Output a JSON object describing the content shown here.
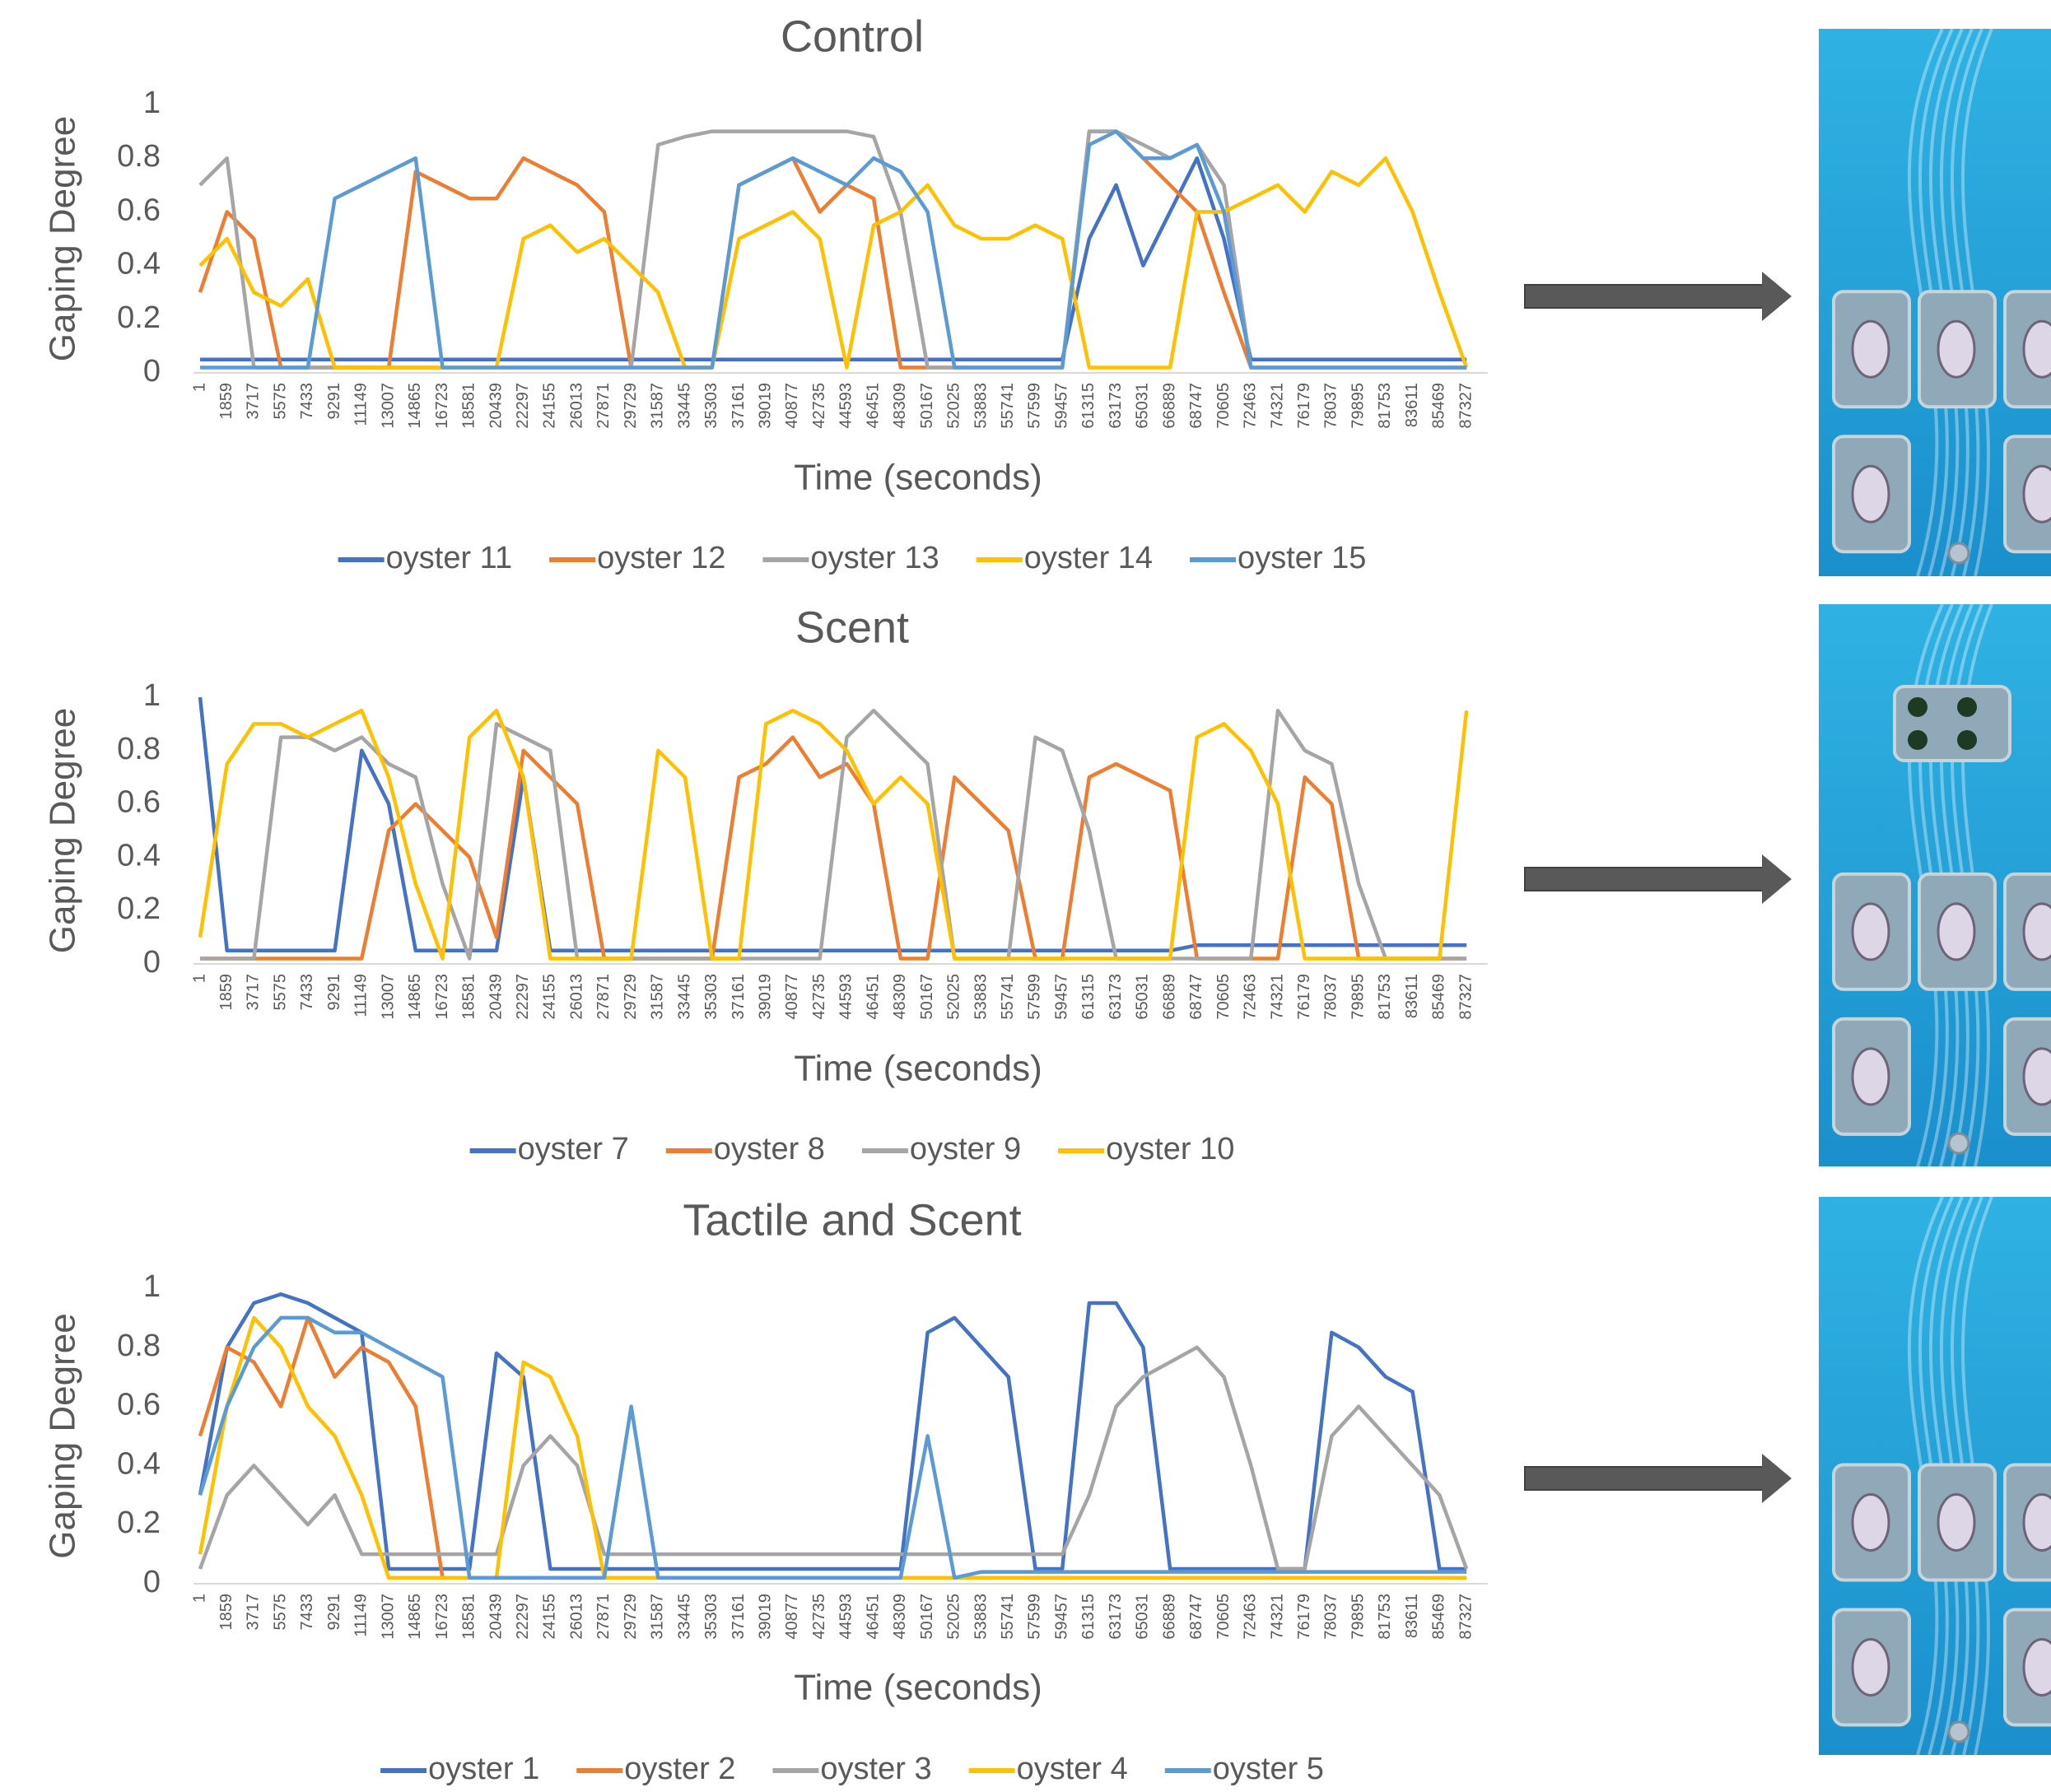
{
  "chart_data": [
    {
      "type": "line",
      "title": "Control",
      "x_label": "Time (seconds)",
      "y_label": "Gaping Degree",
      "x": [
        1,
        1859,
        3717,
        5575,
        7433,
        9291,
        11149,
        13007,
        14865,
        16723,
        18581,
        20439,
        22297,
        24155,
        26013,
        27871,
        29729,
        31587,
        33445,
        35303,
        37161,
        39019,
        40877,
        42735,
        44593,
        46451,
        48309,
        50167,
        52025,
        53883,
        55741,
        57599,
        59457,
        61315,
        63173,
        65031,
        66889,
        68747,
        70605,
        72463,
        74321,
        76179,
        78037,
        79895,
        81753,
        83611,
        85469,
        87327
      ],
      "xticks": [
        1,
        1859,
        3717,
        5575,
        7433,
        9291,
        11149,
        13007,
        14865,
        16723,
        18581,
        20439,
        22297,
        24155,
        26013,
        27871,
        29729,
        31587,
        33445,
        35303,
        37161,
        39019,
        40877,
        42735,
        44593,
        46451,
        48309,
        50167,
        52025,
        53883,
        55741,
        57599,
        59457,
        61315,
        63173,
        65031,
        66889,
        68747,
        70605,
        72463,
        74321,
        76179,
        78037,
        79895,
        81753,
        83611,
        85469,
        87327
      ],
      "xlim": [
        1,
        88800
      ],
      "ylim": [
        0,
        1
      ],
      "yticks": [
        0,
        0.2,
        0.4,
        0.6,
        0.8,
        1
      ],
      "series": [
        {
          "name": "oyster 11",
          "color": "#4472c4",
          "values": [
            0.05,
            0.05,
            0.05,
            0.05,
            0.05,
            0.05,
            0.05,
            0.05,
            0.05,
            0.05,
            0.05,
            0.05,
            0.05,
            0.05,
            0.05,
            0.05,
            0.05,
            0.05,
            0.05,
            0.05,
            0.05,
            0.05,
            0.05,
            0.05,
            0.05,
            0.05,
            0.05,
            0.05,
            0.05,
            0.05,
            0.05,
            0.05,
            0.05,
            0.5,
            0.7,
            0.4,
            0.6,
            0.8,
            0.5,
            0.05,
            0.05,
            0.05,
            0.05,
            0.05,
            0.05,
            0.05,
            0.05,
            0.05
          ]
        },
        {
          "name": "oyster 12",
          "color": "#ed7d31",
          "values": [
            0.3,
            0.6,
            0.5,
            0.02,
            0.02,
            0.02,
            0.02,
            0.02,
            0.75,
            0.7,
            0.65,
            0.65,
            0.8,
            0.75,
            0.7,
            0.6,
            0.02,
            0.02,
            0.02,
            0.02,
            0.7,
            0.75,
            0.8,
            0.6,
            0.7,
            0.65,
            0.02,
            0.02,
            0.02,
            0.02,
            0.02,
            0.02,
            0.02,
            0.9,
            0.9,
            0.8,
            0.7,
            0.6,
            0.3,
            0.02,
            0.02,
            0.02,
            0.02,
            0.02,
            0.02,
            0.02,
            0.02,
            0.02
          ]
        },
        {
          "name": "oyster 13",
          "color": "#a5a5a5",
          "values": [
            0.7,
            0.8,
            0.02,
            0.02,
            0.02,
            0.02,
            0.02,
            0.02,
            0.02,
            0.02,
            0.02,
            0.02,
            0.02,
            0.02,
            0.02,
            0.02,
            0.02,
            0.85,
            0.88,
            0.9,
            0.9,
            0.9,
            0.9,
            0.9,
            0.9,
            0.88,
            0.6,
            0.02,
            0.02,
            0.02,
            0.02,
            0.02,
            0.02,
            0.9,
            0.9,
            0.85,
            0.8,
            0.85,
            0.7,
            0.02,
            0.02,
            0.02,
            0.02,
            0.02,
            0.02,
            0.02,
            0.02,
            0.02
          ]
        },
        {
          "name": "oyster 14",
          "color": "#ffc000",
          "values": [
            0.4,
            0.5,
            0.3,
            0.25,
            0.35,
            0.02,
            0.02,
            0.02,
            0.02,
            0.02,
            0.02,
            0.02,
            0.5,
            0.55,
            0.45,
            0.5,
            0.4,
            0.3,
            0.02,
            0.02,
            0.5,
            0.55,
            0.6,
            0.5,
            0.02,
            0.55,
            0.6,
            0.7,
            0.55,
            0.5,
            0.5,
            0.55,
            0.5,
            0.02,
            0.02,
            0.02,
            0.02,
            0.6,
            0.6,
            0.65,
            0.7,
            0.6,
            0.75,
            0.7,
            0.8,
            0.6,
            0.3,
            0.02
          ]
        },
        {
          "name": "oyster 15",
          "color": "#5b9bd5",
          "values": [
            0.02,
            0.02,
            0.02,
            0.02,
            0.02,
            0.65,
            0.7,
            0.75,
            0.8,
            0.02,
            0.02,
            0.02,
            0.02,
            0.02,
            0.02,
            0.02,
            0.02,
            0.02,
            0.02,
            0.02,
            0.7,
            0.75,
            0.8,
            0.75,
            0.7,
            0.8,
            0.75,
            0.6,
            0.02,
            0.02,
            0.02,
            0.02,
            0.02,
            0.85,
            0.9,
            0.8,
            0.8,
            0.85,
            0.6,
            0.02,
            0.02,
            0.02,
            0.02,
            0.02,
            0.02,
            0.02,
            0.02,
            0.02
          ]
        }
      ]
    },
    {
      "type": "line",
      "title": "Scent",
      "x_label": "Time (seconds)",
      "y_label": "Gaping Degree",
      "x": [
        1,
        1859,
        3717,
        5575,
        7433,
        9291,
        11149,
        13007,
        14865,
        16723,
        18581,
        20439,
        22297,
        24155,
        26013,
        27871,
        29729,
        31587,
        33445,
        35303,
        37161,
        39019,
        40877,
        42735,
        44593,
        46451,
        48309,
        50167,
        52025,
        53883,
        55741,
        57599,
        59457,
        61315,
        63173,
        65031,
        66889,
        68747,
        70605,
        72463,
        74321,
        76179,
        78037,
        79895,
        81753,
        83611,
        85469,
        87327
      ],
      "xticks": [
        1,
        1859,
        3717,
        5575,
        7433,
        9291,
        11149,
        13007,
        14865,
        16723,
        18581,
        20439,
        22297,
        24155,
        26013,
        27871,
        29729,
        31587,
        33445,
        35303,
        37161,
        39019,
        40877,
        42735,
        44593,
        46451,
        48309,
        50167,
        52025,
        53883,
        55741,
        57599,
        59457,
        61315,
        63173,
        65031,
        66889,
        68747,
        70605,
        72463,
        74321,
        76179,
        78037,
        79895,
        81753,
        83611,
        85469,
        87327
      ],
      "xlim": [
        1,
        88800
      ],
      "ylim": [
        0,
        1
      ],
      "yticks": [
        0,
        0.2,
        0.4,
        0.6,
        0.8,
        1
      ],
      "series": [
        {
          "name": "oyster 7",
          "color": "#4472c4",
          "values": [
            1,
            0.05,
            0.05,
            0.05,
            0.05,
            0.05,
            0.8,
            0.6,
            0.05,
            0.05,
            0.05,
            0.05,
            0.7,
            0.05,
            0.05,
            0.05,
            0.05,
            0.05,
            0.05,
            0.05,
            0.05,
            0.05,
            0.05,
            0.05,
            0.05,
            0.05,
            0.05,
            0.05,
            0.05,
            0.05,
            0.05,
            0.05,
            0.05,
            0.05,
            0.05,
            0.05,
            0.05,
            0.07,
            0.07,
            0.07,
            0.07,
            0.07,
            0.07,
            0.07,
            0.07,
            0.07,
            0.07,
            0.07
          ]
        },
        {
          "name": "oyster 8",
          "color": "#ed7d31",
          "values": [
            0.02,
            0.02,
            0.02,
            0.02,
            0.02,
            0.02,
            0.02,
            0.5,
            0.6,
            0.5,
            0.4,
            0.1,
            0.8,
            0.7,
            0.6,
            0.02,
            0.02,
            0.02,
            0.02,
            0.02,
            0.7,
            0.75,
            0.85,
            0.7,
            0.75,
            0.6,
            0.02,
            0.02,
            0.7,
            0.6,
            0.5,
            0.02,
            0.02,
            0.7,
            0.75,
            0.7,
            0.65,
            0.02,
            0.02,
            0.02,
            0.02,
            0.7,
            0.6,
            0.02,
            0.02,
            0.02,
            0.02,
            0.02
          ]
        },
        {
          "name": "oyster 9",
          "color": "#a5a5a5",
          "values": [
            0.02,
            0.02,
            0.02,
            0.85,
            0.85,
            0.8,
            0.85,
            0.75,
            0.7,
            0.3,
            0.02,
            0.9,
            0.85,
            0.8,
            0.02,
            0.02,
            0.02,
            0.02,
            0.02,
            0.02,
            0.02,
            0.02,
            0.02,
            0.02,
            0.85,
            0.95,
            0.85,
            0.75,
            0.02,
            0.02,
            0.02,
            0.85,
            0.8,
            0.5,
            0.02,
            0.02,
            0.02,
            0.02,
            0.02,
            0.02,
            0.95,
            0.8,
            0.75,
            0.3,
            0.02,
            0.02,
            0.02,
            0.02
          ]
        },
        {
          "name": "oyster 10",
          "color": "#ffc000",
          "values": [
            0.1,
            0.75,
            0.9,
            0.9,
            0.85,
            0.9,
            0.95,
            0.7,
            0.3,
            0.02,
            0.85,
            0.95,
            0.7,
            0.02,
            0.02,
            0.02,
            0.02,
            0.8,
            0.7,
            0.02,
            0.02,
            0.9,
            0.95,
            0.9,
            0.8,
            0.6,
            0.7,
            0.6,
            0.02,
            0.02,
            0.02,
            0.02,
            0.02,
            0.02,
            0.02,
            0.02,
            0.02,
            0.85,
            0.9,
            0.8,
            0.6,
            0.02,
            0.02,
            0.02,
            0.02,
            0.02,
            0.02,
            0.95
          ]
        }
      ]
    },
    {
      "type": "line",
      "title": "Tactile and Scent",
      "x_label": "Time (seconds)",
      "y_label": "Gaping Degree",
      "x": [
        1,
        1859,
        3717,
        5575,
        7433,
        9291,
        11149,
        13007,
        14865,
        16723,
        18581,
        20439,
        22297,
        24155,
        26013,
        27871,
        29729,
        31587,
        33445,
        35303,
        37161,
        39019,
        40877,
        42735,
        44593,
        46451,
        48309,
        50167,
        52025,
        53883,
        55741,
        57599,
        59457,
        61315,
        63173,
        65031,
        66889,
        68747,
        70605,
        72463,
        74321,
        76179,
        78037,
        79895,
        81753,
        83611,
        85469,
        87327
      ],
      "xticks": [
        1,
        1859,
        3717,
        5575,
        7433,
        9291,
        11149,
        13007,
        14865,
        16723,
        18581,
        20439,
        22297,
        24155,
        26013,
        27871,
        29729,
        31587,
        33445,
        35303,
        37161,
        39019,
        40877,
        42735,
        44593,
        46451,
        48309,
        50167,
        52025,
        53883,
        55741,
        57599,
        59457,
        61315,
        63173,
        65031,
        66889,
        68747,
        70605,
        72463,
        74321,
        76179,
        78037,
        79895,
        81753,
        83611,
        85469,
        87327
      ],
      "xlim": [
        1,
        88800
      ],
      "ylim": [
        0,
        1
      ],
      "yticks": [
        0,
        0.2,
        0.4,
        0.6,
        0.8,
        1
      ],
      "series": [
        {
          "name": "oyster 1",
          "color": "#4472c4",
          "values": [
            0.3,
            0.8,
            0.95,
            0.98,
            0.95,
            0.9,
            0.85,
            0.05,
            0.05,
            0.05,
            0.05,
            0.78,
            0.7,
            0.05,
            0.05,
            0.05,
            0.05,
            0.05,
            0.05,
            0.05,
            0.05,
            0.05,
            0.05,
            0.05,
            0.05,
            0.05,
            0.05,
            0.85,
            0.9,
            0.8,
            0.7,
            0.05,
            0.05,
            0.95,
            0.95,
            0.8,
            0.05,
            0.05,
            0.05,
            0.05,
            0.05,
            0.05,
            0.85,
            0.8,
            0.7,
            0.65,
            0.05,
            0.05
          ]
        },
        {
          "name": "oyster 2",
          "color": "#ed7d31",
          "values": [
            0.5,
            0.8,
            0.75,
            0.6,
            0.9,
            0.7,
            0.8,
            0.75,
            0.6,
            0.02,
            0.02,
            0.02,
            0.02,
            0.02,
            0.02,
            0.02,
            0.02,
            0.02,
            0.02,
            0.02,
            0.02,
            0.02,
            0.02,
            0.02,
            0.02,
            0.02,
            0.02,
            0.02,
            0.02,
            0.02,
            0.02,
            0.02,
            0.02,
            0.02,
            0.02,
            0.02,
            0.02,
            0.02,
            0.02,
            0.02,
            0.02,
            0.02,
            0.02,
            0.02,
            0.02,
            0.02,
            0.02,
            0.02
          ]
        },
        {
          "name": "oyster 3",
          "color": "#a5a5a5",
          "values": [
            0.05,
            0.3,
            0.4,
            0.3,
            0.2,
            0.3,
            0.1,
            0.1,
            0.1,
            0.1,
            0.1,
            0.1,
            0.4,
            0.5,
            0.4,
            0.1,
            0.1,
            0.1,
            0.1,
            0.1,
            0.1,
            0.1,
            0.1,
            0.1,
            0.1,
            0.1,
            0.1,
            0.1,
            0.1,
            0.1,
            0.1,
            0.1,
            0.1,
            0.3,
            0.6,
            0.7,
            0.75,
            0.8,
            0.7,
            0.4,
            0.05,
            0.05,
            0.5,
            0.6,
            0.5,
            0.4,
            0.3,
            0.05
          ]
        },
        {
          "name": "oyster 4",
          "color": "#ffc000",
          "values": [
            0.1,
            0.6,
            0.9,
            0.8,
            0.6,
            0.5,
            0.3,
            0.02,
            0.02,
            0.02,
            0.02,
            0.02,
            0.75,
            0.7,
            0.5,
            0.02,
            0.02,
            0.02,
            0.02,
            0.02,
            0.02,
            0.02,
            0.02,
            0.02,
            0.02,
            0.02,
            0.02,
            0.02,
            0.02,
            0.02,
            0.02,
            0.02,
            0.02,
            0.02,
            0.02,
            0.02,
            0.02,
            0.02,
            0.02,
            0.02,
            0.02,
            0.02,
            0.02,
            0.02,
            0.02,
            0.02,
            0.02,
            0.02
          ]
        },
        {
          "name": "oyster 5",
          "color": "#5b9bd5",
          "values": [
            0.3,
            0.6,
            0.8,
            0.9,
            0.9,
            0.85,
            0.85,
            0.8,
            0.75,
            0.7,
            0.02,
            0.02,
            0.02,
            0.02,
            0.02,
            0.02,
            0.6,
            0.02,
            0.02,
            0.02,
            0.02,
            0.02,
            0.02,
            0.02,
            0.02,
            0.02,
            0.02,
            0.5,
            0.02,
            0.04,
            0.04,
            0.04,
            0.04,
            0.04,
            0.04,
            0.04,
            0.04,
            0.04,
            0.04,
            0.04,
            0.04,
            0.04,
            0.04,
            0.04,
            0.04,
            0.04,
            0.04,
            0.04
          ]
        }
      ]
    }
  ]
}
